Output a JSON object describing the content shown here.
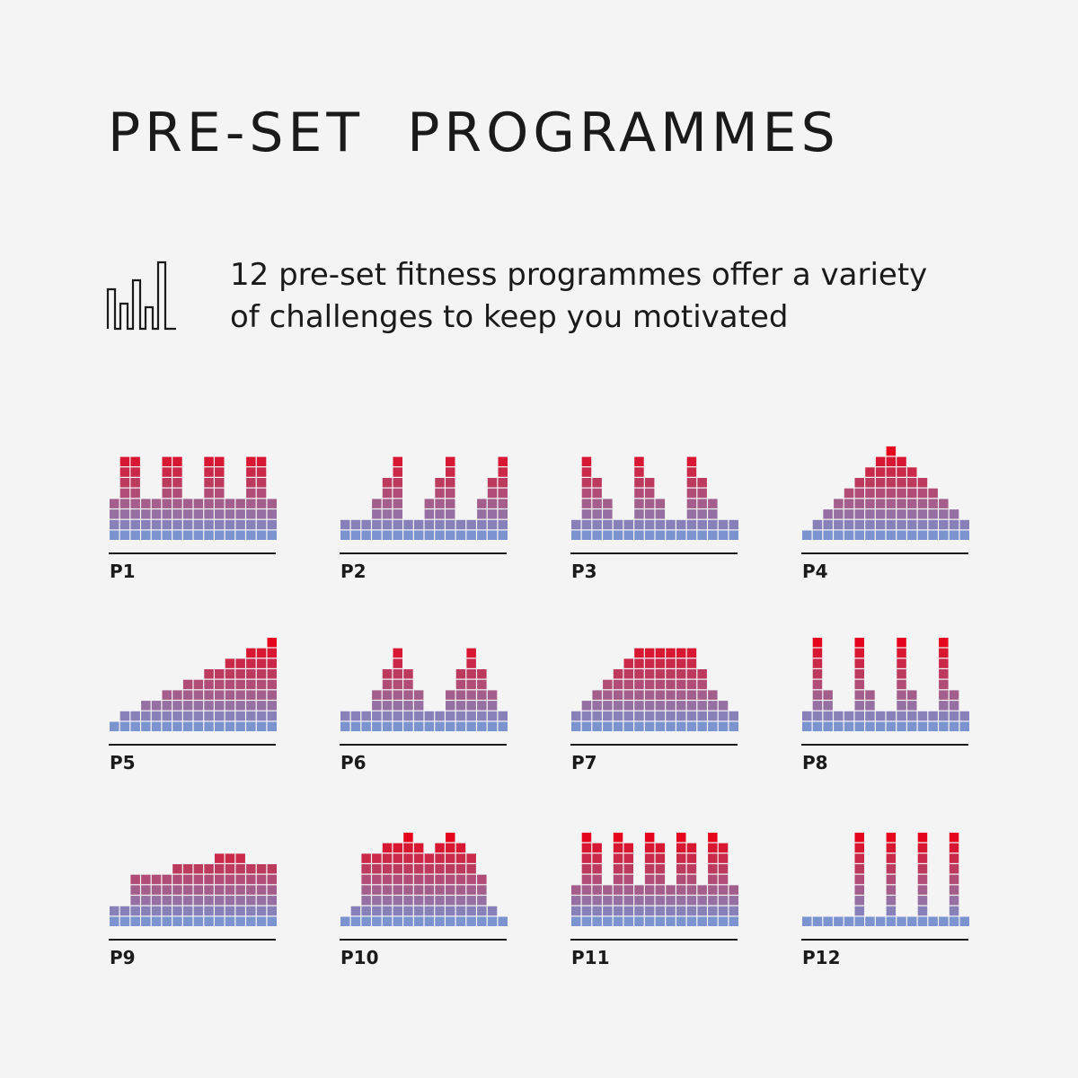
{
  "header": {
    "title": "PRE-SET  PROGRAMMES"
  },
  "feature": {
    "icon": "bar-chart-outline-icon",
    "description_line1": "12 pre-set fitness programmes offer a variety",
    "description_line2": "of challenges to keep you motivated"
  },
  "colors": {
    "background": "#f4f4f4",
    "low_level": "#7b93cf",
    "high_level": "#e5051c",
    "text": "#1a1a1a"
  },
  "chart_data": [
    {
      "type": "bar",
      "name": "P1",
      "max_level": 9,
      "values": [
        4,
        8,
        8,
        4,
        4,
        8,
        8,
        4,
        4,
        8,
        8,
        4,
        4,
        8,
        8,
        4
      ]
    },
    {
      "type": "bar",
      "name": "P2",
      "max_level": 9,
      "values": [
        2,
        2,
        2,
        4,
        6,
        8,
        2,
        2,
        4,
        6,
        8,
        2,
        2,
        4,
        6,
        8
      ]
    },
    {
      "type": "bar",
      "name": "P3",
      "max_level": 9,
      "values": [
        2,
        8,
        6,
        4,
        2,
        2,
        8,
        6,
        4,
        2,
        2,
        8,
        6,
        4,
        2,
        2
      ]
    },
    {
      "type": "bar",
      "name": "P4",
      "max_level": 9,
      "values": [
        1,
        2,
        3,
        4,
        5,
        6,
        7,
        8,
        9,
        8,
        7,
        6,
        5,
        4,
        3,
        2
      ]
    },
    {
      "type": "bar",
      "name": "P5",
      "max_level": 9,
      "values": [
        1,
        2,
        2,
        3,
        3,
        4,
        4,
        5,
        5,
        6,
        6,
        7,
        7,
        8,
        8,
        9
      ]
    },
    {
      "type": "bar",
      "name": "P6",
      "max_level": 9,
      "values": [
        2,
        2,
        2,
        4,
        6,
        8,
        6,
        4,
        2,
        2,
        4,
        6,
        8,
        6,
        4,
        2
      ]
    },
    {
      "type": "bar",
      "name": "P7",
      "max_level": 9,
      "values": [
        2,
        3,
        4,
        5,
        6,
        7,
        8,
        8,
        8,
        8,
        8,
        8,
        6,
        4,
        3,
        2
      ]
    },
    {
      "type": "bar",
      "name": "P8",
      "max_level": 9,
      "values": [
        2,
        9,
        4,
        2,
        2,
        9,
        4,
        2,
        2,
        9,
        4,
        2,
        2,
        9,
        4,
        2
      ]
    },
    {
      "type": "bar",
      "name": "P9",
      "max_level": 9,
      "values": [
        2,
        2,
        5,
        5,
        5,
        5,
        6,
        6,
        6,
        6,
        7,
        7,
        7,
        6,
        6,
        6
      ]
    },
    {
      "type": "bar",
      "name": "P10",
      "max_level": 9,
      "values": [
        1,
        2,
        7,
        7,
        8,
        8,
        9,
        8,
        7,
        8,
        9,
        8,
        7,
        5,
        2,
        1
      ]
    },
    {
      "type": "bar",
      "name": "P11",
      "max_level": 9,
      "values": [
        4,
        9,
        8,
        4,
        9,
        8,
        4,
        9,
        8,
        4,
        9,
        8,
        4,
        9,
        8,
        4
      ]
    },
    {
      "type": "bar",
      "name": "P12",
      "max_level": 9,
      "values": [
        1,
        1,
        1,
        1,
        1,
        9,
        1,
        1,
        9,
        1,
        1,
        9,
        1,
        1,
        9,
        1
      ]
    }
  ]
}
